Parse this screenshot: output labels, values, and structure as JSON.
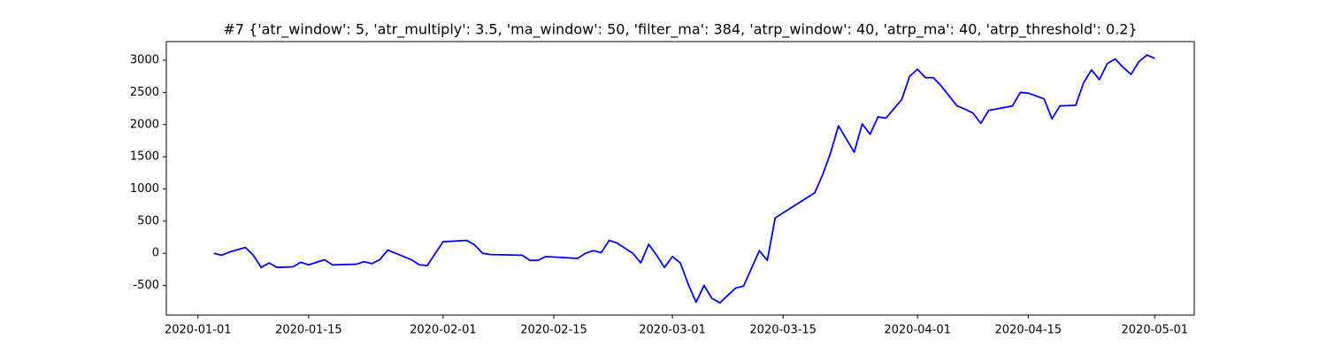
{
  "chart_data": {
    "type": "line",
    "title": "#7 {'atr_window': 5, 'atr_multiply': 3.5, 'ma_window': 50, 'filter_ma': 384, 'atrp_window': 40, 'atrp_ma': 40, 'atrp_threshold': 0.2}",
    "color": "#0000ff",
    "x": [
      "2020-01-03",
      "2020-01-04",
      "2020-01-05",
      "2020-01-07",
      "2020-01-08",
      "2020-01-09",
      "2020-01-10",
      "2020-01-11",
      "2020-01-13",
      "2020-01-14",
      "2020-01-15",
      "2020-01-17",
      "2020-01-18",
      "2020-01-21",
      "2020-01-22",
      "2020-01-23",
      "2020-01-24",
      "2020-01-25",
      "2020-01-28",
      "2020-01-29",
      "2020-01-30",
      "2020-02-01",
      "2020-02-04",
      "2020-02-05",
      "2020-02-06",
      "2020-02-07",
      "2020-02-11",
      "2020-02-12",
      "2020-02-13",
      "2020-02-14",
      "2020-02-18",
      "2020-02-19",
      "2020-02-20",
      "2020-02-21",
      "2020-02-22",
      "2020-02-23",
      "2020-02-25",
      "2020-02-26",
      "2020-02-27",
      "2020-02-28",
      "2020-02-29",
      "2020-03-01",
      "2020-03-02",
      "2020-03-03",
      "2020-03-04",
      "2020-03-05",
      "2020-03-06",
      "2020-03-07",
      "2020-03-09",
      "2020-03-10",
      "2020-03-12",
      "2020-03-13",
      "2020-03-14",
      "2020-03-19",
      "2020-03-20",
      "2020-03-21",
      "2020-03-22",
      "2020-03-24",
      "2020-03-25",
      "2020-03-26",
      "2020-03-27",
      "2020-03-28",
      "2020-03-30",
      "2020-03-31",
      "2020-04-01",
      "2020-04-02",
      "2020-04-03",
      "2020-04-04",
      "2020-04-06",
      "2020-04-07",
      "2020-04-08",
      "2020-04-09",
      "2020-04-10",
      "2020-04-13",
      "2020-04-14",
      "2020-04-15",
      "2020-04-17",
      "2020-04-18",
      "2020-04-19",
      "2020-04-21",
      "2020-04-22",
      "2020-04-23",
      "2020-04-24",
      "2020-04-25",
      "2020-04-26",
      "2020-04-27",
      "2020-04-28",
      "2020-04-29",
      "2020-04-30",
      "2020-05-01"
    ],
    "values": [
      0,
      -30,
      20,
      90,
      -30,
      -220,
      -150,
      -220,
      -210,
      -140,
      -180,
      -100,
      -180,
      -170,
      -130,
      -160,
      -100,
      50,
      -100,
      -180,
      -190,
      180,
      200,
      130,
      0,
      -20,
      -30,
      -110,
      -110,
      -50,
      -80,
      0,
      40,
      10,
      200,
      160,
      0,
      -150,
      140,
      -30,
      -220,
      -50,
      -150,
      -480,
      -760,
      -500,
      -700,
      -770,
      -540,
      -510,
      40,
      -110,
      550,
      940,
      1220,
      1560,
      1980,
      1570,
      2010,
      1850,
      2120,
      2100,
      2390,
      2750,
      2860,
      2730,
      2730,
      2600,
      2290,
      2240,
      2180,
      2020,
      2220,
      2290,
      2500,
      2490,
      2400,
      2090,
      2290,
      2300,
      2650,
      2850,
      2700,
      2950,
      3020,
      2890,
      2780,
      2980,
      3080,
      3030
    ],
    "xlim": [
      "2019-12-28",
      "2020-05-06"
    ],
    "xticks": [
      "2020-01-01",
      "2020-01-15",
      "2020-02-01",
      "2020-02-15",
      "2020-03-01",
      "2020-03-15",
      "2020-04-01",
      "2020-04-15",
      "2020-05-01"
    ],
    "ylim": [
      -960,
      3290
    ],
    "yticks": [
      -500,
      0,
      500,
      1000,
      1500,
      2000,
      2500,
      3000
    ]
  }
}
